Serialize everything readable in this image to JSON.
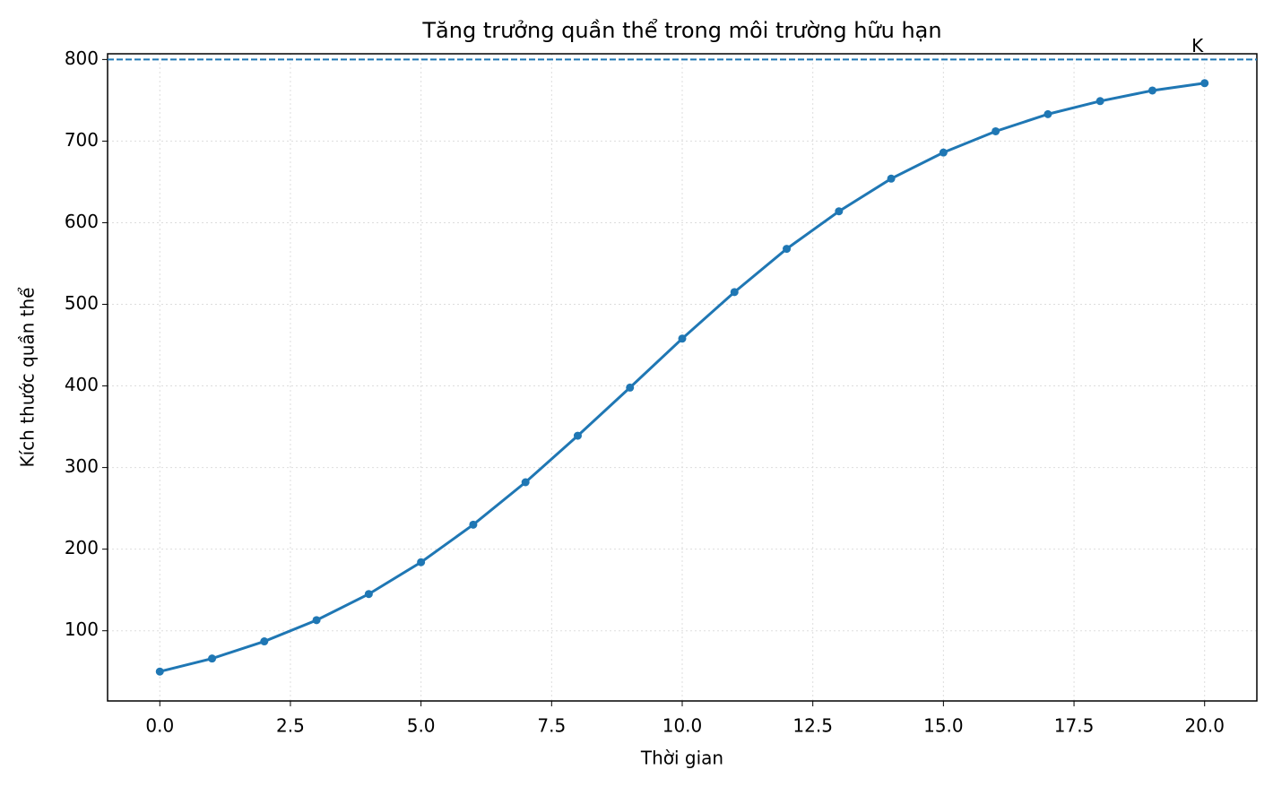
{
  "chart_data": {
    "type": "line",
    "title": "Tăng trưởng quần thể trong môi trường hữu hạn",
    "x_label": "Thời gian",
    "y_label": "Kích thước quần thể",
    "x": [
      0,
      1,
      2,
      3,
      4,
      5,
      6,
      7,
      8,
      9,
      10,
      11,
      12,
      13,
      14,
      15,
      16,
      17,
      18,
      19,
      20
    ],
    "series": [
      {
        "color": "#1f77b4",
        "values": [
          50,
          66,
          87,
          113,
          145,
          184,
          230,
          282,
          339,
          398,
          458,
          515,
          568,
          614,
          654,
          686,
          712,
          733,
          749,
          762,
          771
        ]
      }
    ],
    "reference_line": {
      "value": 800,
      "label": "K",
      "color": "#1f77b4",
      "style": "dashed"
    },
    "xlim": [
      -1,
      21
    ],
    "ylim": [
      14,
      807
    ],
    "xticks": [
      {
        "value": 0,
        "label": "0.0"
      },
      {
        "value": 2.5,
        "label": "2.5"
      },
      {
        "value": 5,
        "label": "5.0"
      },
      {
        "value": 7.5,
        "label": "7.5"
      },
      {
        "value": 10,
        "label": "10.0"
      },
      {
        "value": 12.5,
        "label": "12.5"
      },
      {
        "value": 15,
        "label": "15.0"
      },
      {
        "value": 17.5,
        "label": "17.5"
      },
      {
        "value": 20,
        "label": "20.0"
      }
    ],
    "yticks": [
      100,
      200,
      300,
      400,
      500,
      600,
      700,
      800
    ],
    "grid": true
  }
}
